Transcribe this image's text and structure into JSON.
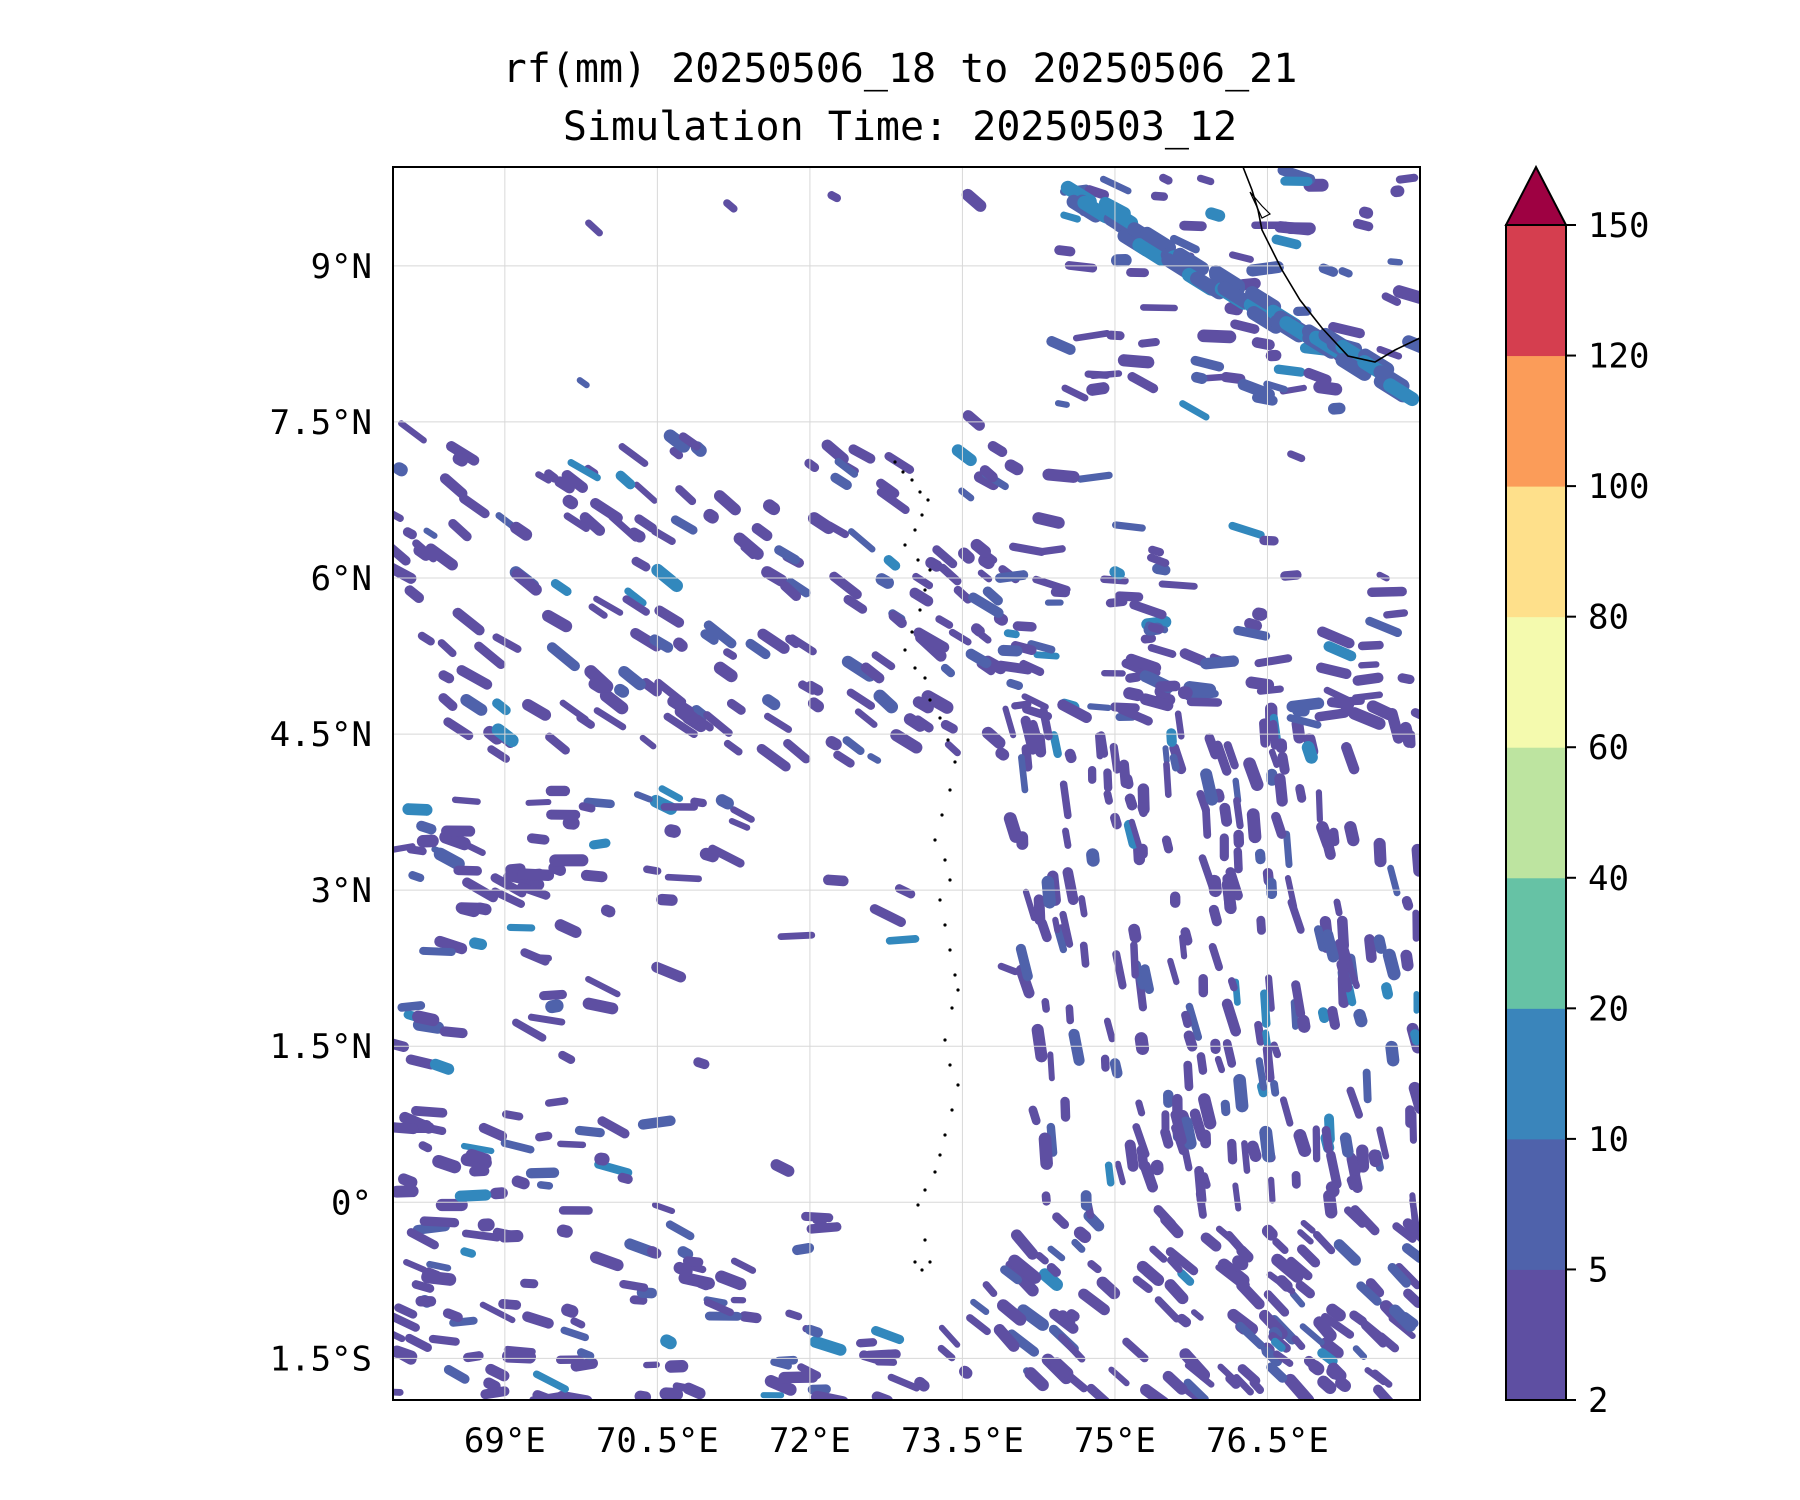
{
  "title": {
    "line1": "rf(mm) 20250506_18 to 20250506_21",
    "line2": "Simulation Time: 20250503_12"
  },
  "map": {
    "lon_range": [
      67.9,
      78.0
    ],
    "lat_range": [
      -1.9,
      9.95
    ],
    "lat_ticks": [
      {
        "value": 9,
        "label": "9°N"
      },
      {
        "value": 7.5,
        "label": "7.5°N"
      },
      {
        "value": 6,
        "label": "6°N"
      },
      {
        "value": 4.5,
        "label": "4.5°N"
      },
      {
        "value": 3,
        "label": "3°N"
      },
      {
        "value": 1.5,
        "label": "1.5°N"
      },
      {
        "value": 0,
        "label": "0°"
      },
      {
        "value": -1.5,
        "label": "1.5°S"
      }
    ],
    "lon_ticks": [
      {
        "value": 69,
        "label": "69°E"
      },
      {
        "value": 70.5,
        "label": "70.5°E"
      },
      {
        "value": 72,
        "label": "72°E"
      },
      {
        "value": 73.5,
        "label": "73.5°E"
      },
      {
        "value": 75,
        "label": "75°E"
      },
      {
        "value": 76.5,
        "label": "76.5°E"
      }
    ],
    "grid": true,
    "rain_color": "#5e4fa2",
    "rain_color_mid": "#4f62ab",
    "rain_color_high": "#3288bd"
  },
  "colorbar": {
    "extend": "max",
    "extend_color": "#9e0142",
    "levels": [
      "2",
      "5",
      "10",
      "20",
      "40",
      "60",
      "80",
      "100",
      "120",
      "150"
    ],
    "colors": [
      "#5e4fa2",
      "#4f62ab",
      "#3a85bb",
      "#66c2a5",
      "#bde4a0",
      "#f4faae",
      "#fee08b",
      "#fb9c59",
      "#d53e4f"
    ]
  }
}
